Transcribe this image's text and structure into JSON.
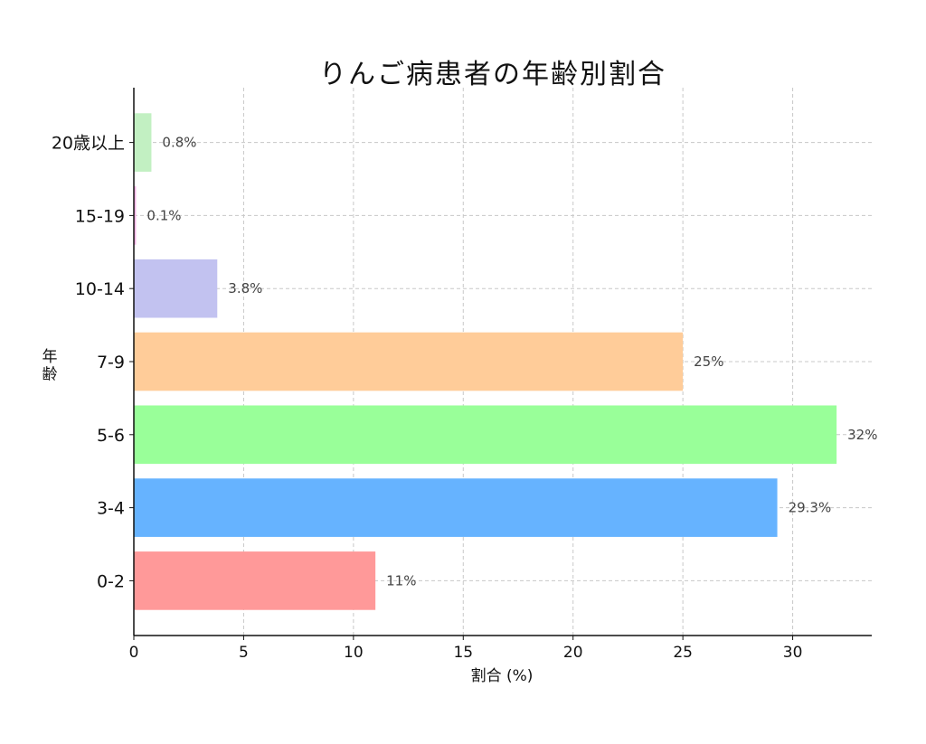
{
  "chart_data": {
    "type": "bar",
    "orientation": "horizontal",
    "title": "りんご病患者の年齢別割合",
    "xlabel": "割合 (%)",
    "ylabel": "年齢",
    "categories": [
      "0-2",
      "3-4",
      "5-6",
      "7-9",
      "10-14",
      "15-19",
      "20歳以上"
    ],
    "values": [
      11,
      29.3,
      32,
      25,
      3.8,
      0.1,
      0.8
    ],
    "data_labels": [
      "11%",
      "29.3%",
      "32%",
      "25%",
      "3.8%",
      "0.1%",
      "0.8%"
    ],
    "colors": [
      "#ff9999",
      "#66b3ff",
      "#99ff99",
      "#ffcc99",
      "#c2c2f0",
      "#ffb3e6",
      "#c2f0c2"
    ],
    "xlim": [
      0,
      33.6
    ],
    "xticks": [
      0,
      5,
      10,
      15,
      20,
      25,
      30
    ],
    "grid": true
  }
}
